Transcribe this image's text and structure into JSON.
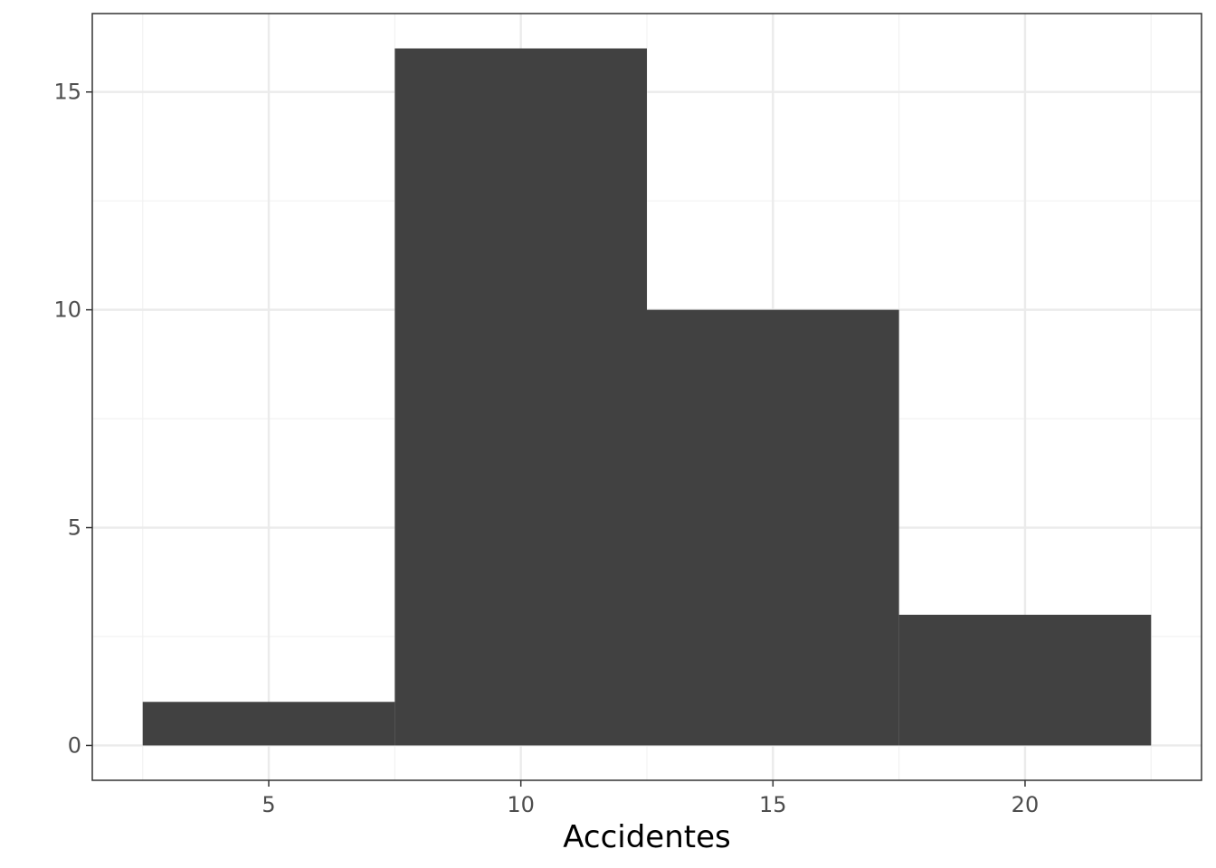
{
  "chart_data": {
    "type": "bar",
    "subtype": "histogram",
    "title": "",
    "xlabel": "Accidentes",
    "ylabel": "",
    "bins": [
      {
        "x0": 2.5,
        "x1": 7.5,
        "count": 1
      },
      {
        "x0": 7.5,
        "x1": 12.5,
        "count": 16
      },
      {
        "x0": 12.5,
        "x1": 17.5,
        "count": 10
      },
      {
        "x0": 17.5,
        "x1": 22.5,
        "count": 3
      }
    ],
    "xlim": [
      1.5,
      23.5
    ],
    "ylim": [
      -0.8,
      16.8
    ],
    "x_ticks": [
      5,
      10,
      15,
      20
    ],
    "x_tick_labels": [
      "5",
      "10",
      "15",
      "20"
    ],
    "y_ticks": [
      0,
      5,
      10,
      15
    ],
    "y_tick_labels": [
      "0",
      "5",
      "10",
      "15"
    ],
    "x_minor_ticks": [
      2.5,
      7.5,
      12.5,
      17.5,
      22.5
    ],
    "y_minor_ticks": [
      2.5,
      7.5,
      12.5
    ],
    "grid": true,
    "legend": "none",
    "colors": {
      "bar_fill": "#414141",
      "panel_background": "#ffffff",
      "grid_major": "#ebebeb",
      "grid_minor": "#f2f2f2",
      "panel_border": "#333333",
      "tick_label": "#4d4d4d",
      "axis_title": "#000000"
    }
  }
}
